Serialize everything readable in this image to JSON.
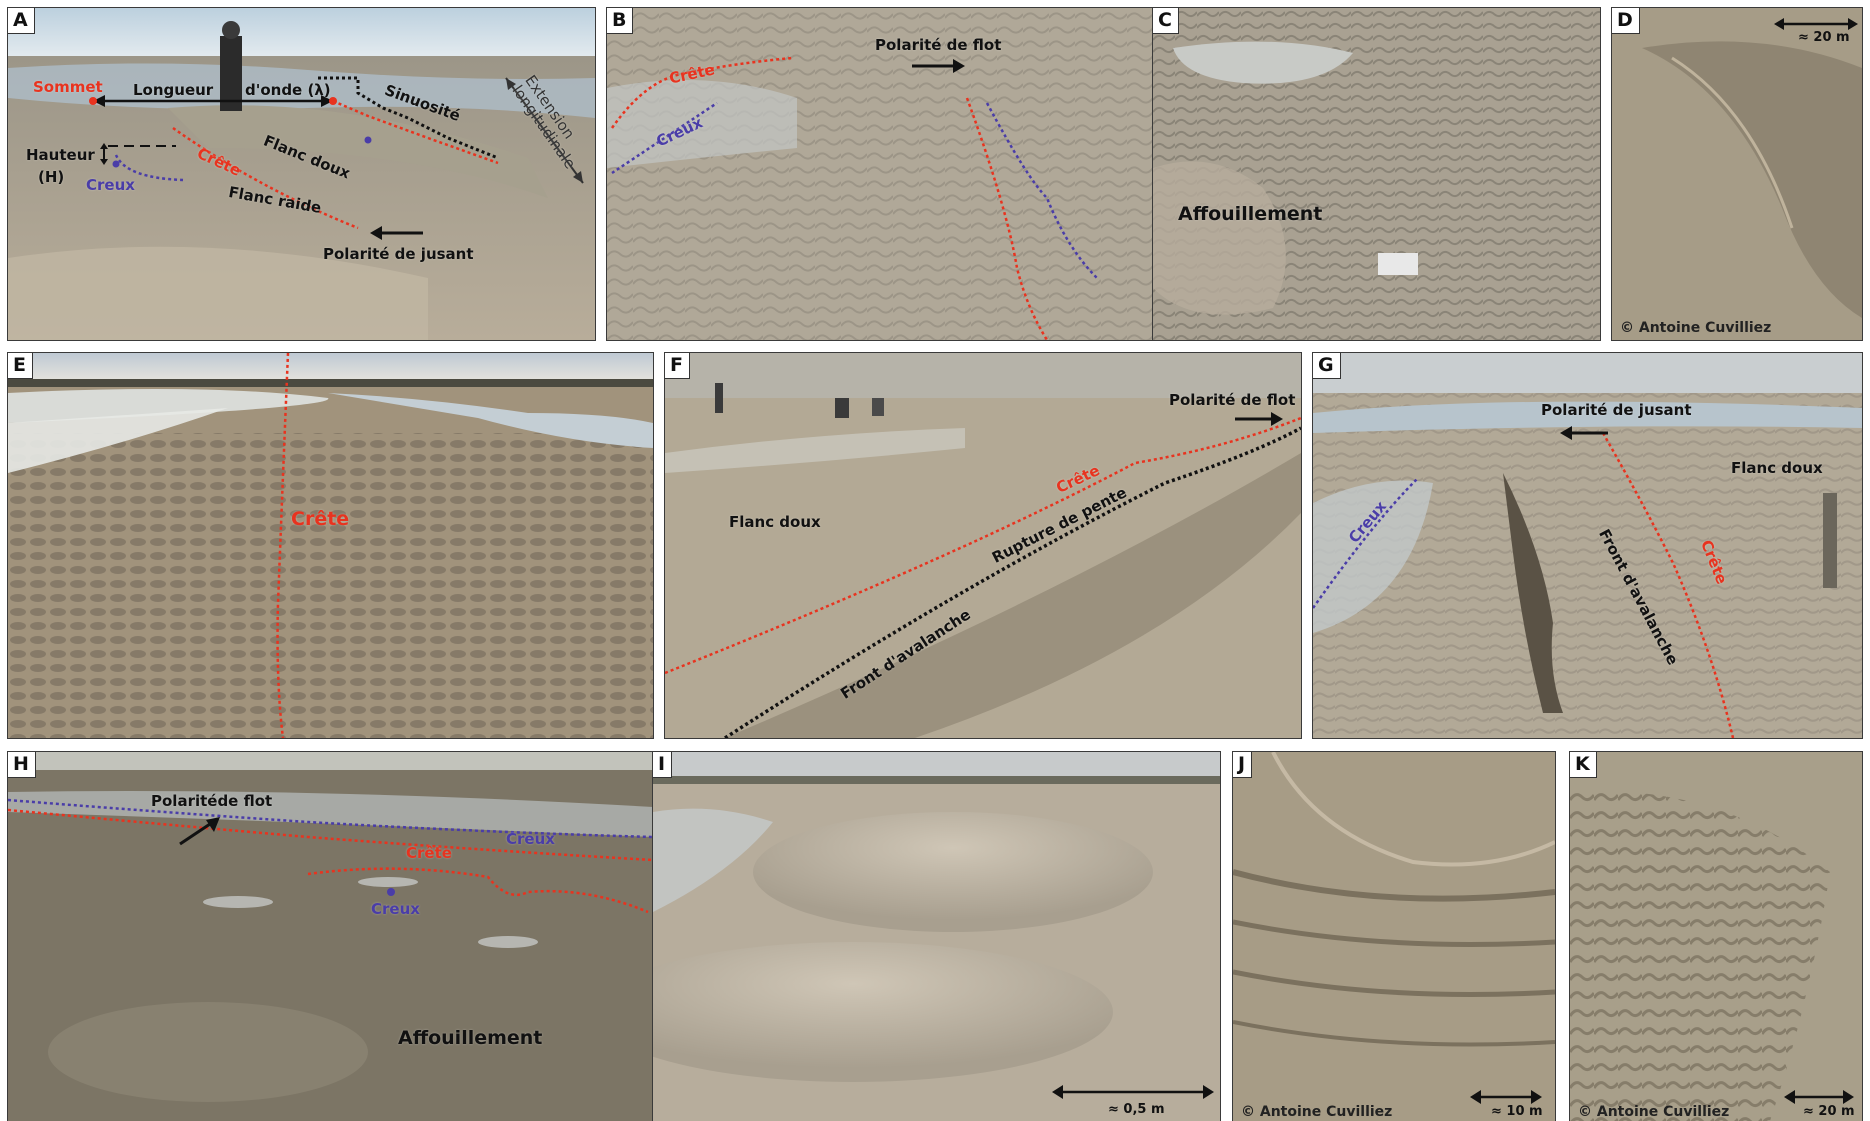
{
  "panels": {
    "A": {
      "label": "A",
      "sommet": "Sommet",
      "longueur": "Longueur",
      "onde": "d'onde (λ)",
      "sinuosite": "Sinuosité",
      "extension1": "Extension",
      "extension2": "longitudinale",
      "hauteur": "Hauteur",
      "h": "(H)",
      "creux": "Creux",
      "crete": "Crête",
      "flanc_doux": "Flanc doux",
      "flanc_raide": "Flanc raide",
      "polarite": "Polarité de jusant"
    },
    "B": {
      "label": "B",
      "polarite": "Polarité de flot",
      "crete": "Crête",
      "creux": "Creux"
    },
    "C": {
      "label": "C",
      "affouillement": "Affouillement"
    },
    "D": {
      "label": "D",
      "scale": "≈ 20 m",
      "credit": "© Antoine Cuvilliez"
    },
    "E": {
      "label": "E",
      "crete": "Crête"
    },
    "F": {
      "label": "F",
      "polarite": "Polarité de flot",
      "crete": "Crête",
      "flanc_doux": "Flanc doux",
      "rupture": "Rupture de pente",
      "front": "Front d'avalanche"
    },
    "G": {
      "label": "G",
      "polarite": "Polarité de jusant",
      "flanc_doux": "Flanc doux",
      "creux": "Creux",
      "front": "Front d'avalanche",
      "crete": "Crête"
    },
    "H": {
      "label": "H",
      "polarite": "Polaritéde flot",
      "creux_top": "Creux",
      "crete": "Crête",
      "creux_mid": "Creux",
      "affouillement": "Affouillement"
    },
    "I": {
      "label": "I",
      "scale": "≈ 0,5 m"
    },
    "J": {
      "label": "J",
      "credit": "© Antoine Cuvilliez",
      "scale": "≈ 10 m"
    },
    "K": {
      "label": "K",
      "credit": "© Antoine Cuvilliez",
      "scale": "≈ 20 m"
    }
  },
  "colors": {
    "crete": "#e8331f",
    "creux": "#4a3da8",
    "sand": "#b4ab9c",
    "water": "#9eb4c4"
  }
}
